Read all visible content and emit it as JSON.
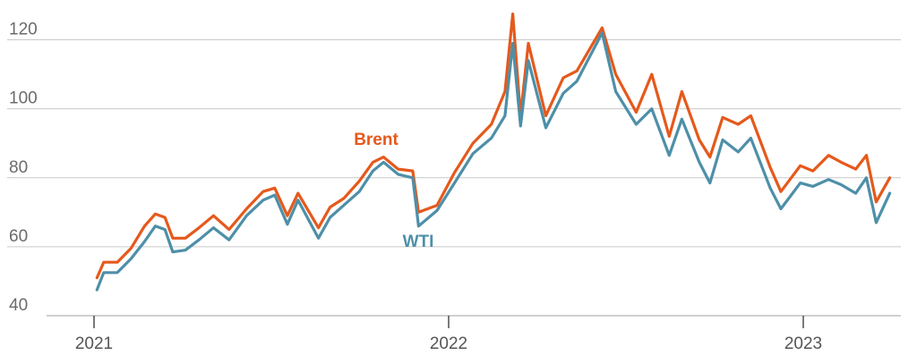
{
  "chart_data": {
    "type": "line",
    "title": "",
    "xlabel": "",
    "ylabel": "",
    "ylim": [
      40,
      130
    ],
    "yticks": [
      40,
      60,
      80,
      100,
      120
    ],
    "xticks": [
      "2021",
      "2022",
      "2023"
    ],
    "xticks_dates": [
      "2021-01-01",
      "2022-01-01",
      "2023-01-01"
    ],
    "grid": true,
    "x_start": "2021-01-01",
    "series": [
      {
        "name": "Brent",
        "color": "#e5591c",
        "points": [
          [
            "2021-01-04",
            51
          ],
          [
            "2021-01-11",
            55.5
          ],
          [
            "2021-01-25",
            55.5
          ],
          [
            "2021-02-08",
            59.5
          ],
          [
            "2021-02-22",
            66
          ],
          [
            "2021-03-05",
            69.5
          ],
          [
            "2021-03-15",
            68.5
          ],
          [
            "2021-03-23",
            62.5
          ],
          [
            "2021-04-05",
            62.5
          ],
          [
            "2021-04-19",
            65.5
          ],
          [
            "2021-05-04",
            69
          ],
          [
            "2021-05-20",
            65
          ],
          [
            "2021-06-07",
            71
          ],
          [
            "2021-06-24",
            76
          ],
          [
            "2021-07-06",
            77
          ],
          [
            "2021-07-19",
            69
          ],
          [
            "2021-07-30",
            75.5
          ],
          [
            "2021-08-20",
            65.5
          ],
          [
            "2021-09-01",
            71.5
          ],
          [
            "2021-09-15",
            74
          ],
          [
            "2021-10-01",
            79
          ],
          [
            "2021-10-15",
            84.5
          ],
          [
            "2021-10-26",
            86
          ],
          [
            "2021-11-10",
            82.5
          ],
          [
            "2021-11-25",
            82
          ],
          [
            "2021-12-01",
            70
          ],
          [
            "2021-12-20",
            72
          ],
          [
            "2022-01-07",
            81.5
          ],
          [
            "2022-01-26",
            90
          ],
          [
            "2022-02-14",
            95.5
          ],
          [
            "2022-02-28",
            105
          ],
          [
            "2022-03-08",
            127.5
          ],
          [
            "2022-03-16",
            98
          ],
          [
            "2022-03-24",
            119
          ],
          [
            "2022-04-11",
            98
          ],
          [
            "2022-04-29",
            109
          ],
          [
            "2022-05-13",
            111
          ],
          [
            "2022-06-08",
            123.5
          ],
          [
            "2022-06-22",
            110
          ],
          [
            "2022-07-13",
            99
          ],
          [
            "2022-07-29",
            110
          ],
          [
            "2022-08-16",
            92
          ],
          [
            "2022-08-29",
            105
          ],
          [
            "2022-09-16",
            91
          ],
          [
            "2022-09-27",
            86
          ],
          [
            "2022-10-10",
            97.5
          ],
          [
            "2022-10-26",
            95.5
          ],
          [
            "2022-11-08",
            98
          ],
          [
            "2022-11-28",
            83
          ],
          [
            "2022-12-09",
            76
          ],
          [
            "2022-12-29",
            83.5
          ],
          [
            "2023-01-11",
            82
          ],
          [
            "2023-01-27",
            86.5
          ],
          [
            "2023-02-09",
            84.5
          ],
          [
            "2023-02-24",
            82.5
          ],
          [
            "2023-03-07",
            86.5
          ],
          [
            "2023-03-17",
            73
          ],
          [
            "2023-03-31",
            80
          ]
        ]
      },
      {
        "name": "WTI",
        "color": "#4e8fa8",
        "points": [
          [
            "2021-01-04",
            47.5
          ],
          [
            "2021-01-11",
            52.5
          ],
          [
            "2021-01-25",
            52.5
          ],
          [
            "2021-02-08",
            56.5
          ],
          [
            "2021-02-22",
            61.5
          ],
          [
            "2021-03-05",
            66
          ],
          [
            "2021-03-15",
            65
          ],
          [
            "2021-03-23",
            58.5
          ],
          [
            "2021-04-05",
            59
          ],
          [
            "2021-04-19",
            62
          ],
          [
            "2021-05-04",
            65.5
          ],
          [
            "2021-05-20",
            62
          ],
          [
            "2021-06-07",
            69
          ],
          [
            "2021-06-24",
            73.5
          ],
          [
            "2021-07-06",
            75
          ],
          [
            "2021-07-19",
            66.5
          ],
          [
            "2021-07-30",
            73.5
          ],
          [
            "2021-08-20",
            62.5
          ],
          [
            "2021-09-01",
            68.5
          ],
          [
            "2021-09-15",
            72
          ],
          [
            "2021-10-01",
            76
          ],
          [
            "2021-10-15",
            82
          ],
          [
            "2021-10-26",
            84.5
          ],
          [
            "2021-11-10",
            81
          ],
          [
            "2021-11-25",
            80
          ],
          [
            "2021-12-01",
            66
          ],
          [
            "2021-12-20",
            70.5
          ],
          [
            "2022-01-07",
            78.5
          ],
          [
            "2022-01-26",
            87
          ],
          [
            "2022-02-14",
            91.5
          ],
          [
            "2022-02-28",
            98
          ],
          [
            "2022-03-08",
            119
          ],
          [
            "2022-03-16",
            95
          ],
          [
            "2022-03-24",
            114
          ],
          [
            "2022-04-11",
            94.5
          ],
          [
            "2022-04-29",
            104.5
          ],
          [
            "2022-05-13",
            108
          ],
          [
            "2022-06-08",
            122
          ],
          [
            "2022-06-22",
            105
          ],
          [
            "2022-07-13",
            95.5
          ],
          [
            "2022-07-29",
            100
          ],
          [
            "2022-08-16",
            86.5
          ],
          [
            "2022-08-29",
            97
          ],
          [
            "2022-09-16",
            84.5
          ],
          [
            "2022-09-27",
            78.5
          ],
          [
            "2022-10-10",
            91
          ],
          [
            "2022-10-26",
            87.5
          ],
          [
            "2022-11-08",
            91.5
          ],
          [
            "2022-11-28",
            77
          ],
          [
            "2022-12-09",
            71
          ],
          [
            "2022-12-29",
            78.5
          ],
          [
            "2023-01-11",
            77.5
          ],
          [
            "2023-01-27",
            79.5
          ],
          [
            "2023-02-09",
            78
          ],
          [
            "2023-02-24",
            75.5
          ],
          [
            "2023-03-07",
            80
          ],
          [
            "2023-03-17",
            67
          ],
          [
            "2023-03-31",
            75.5
          ]
        ]
      }
    ],
    "annotations": [
      {
        "series": "Brent",
        "text": "Brent"
      },
      {
        "series": "WTI",
        "text": "WTI"
      }
    ]
  }
}
